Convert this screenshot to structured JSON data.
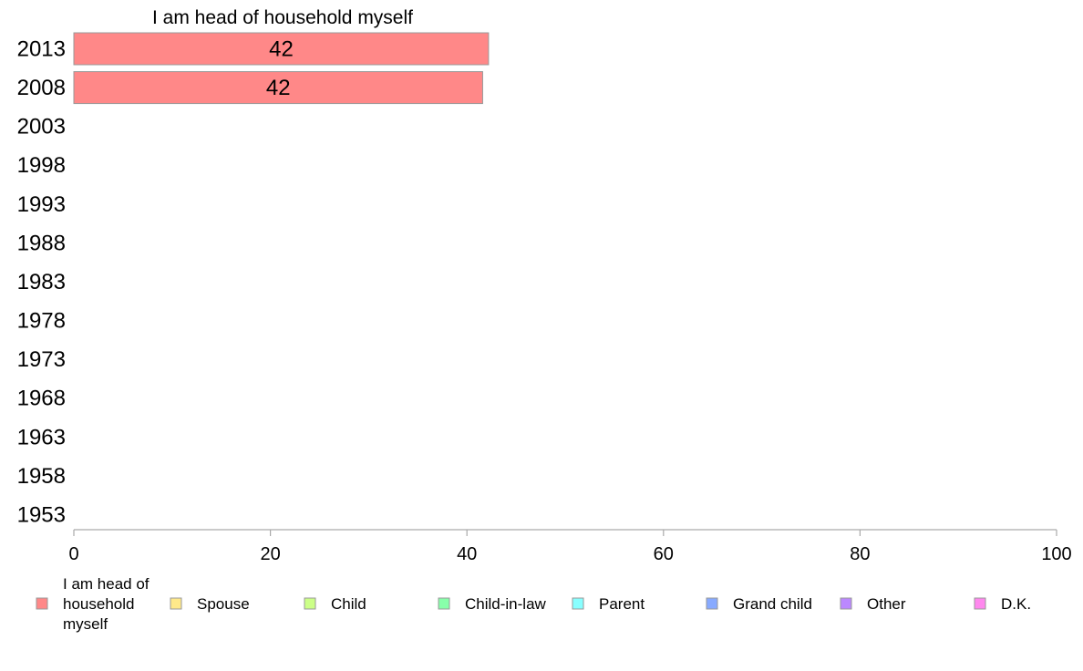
{
  "chart_data": {
    "type": "bar",
    "orientation": "horizontal",
    "title": "I am head of household myself",
    "categories": [
      "2013",
      "2008",
      "2003",
      "1998",
      "1993",
      "1988",
      "1983",
      "1978",
      "1973",
      "1968",
      "1963",
      "1958",
      "1953"
    ],
    "series": [
      {
        "name": "I am head of household myself",
        "color": "#ff8888",
        "values": [
          42.2,
          41.6,
          null,
          null,
          null,
          null,
          null,
          null,
          null,
          null,
          null,
          null,
          null
        ],
        "labels": [
          "42",
          "42",
          "",
          "",
          "",
          "",
          "",
          "",
          "",
          "",
          "",
          "",
          ""
        ]
      }
    ],
    "xlim": [
      0,
      100
    ],
    "xticks": [
      "0",
      "20",
      "40",
      "60",
      "80",
      "100"
    ],
    "grid": false,
    "legend_position": "bottom",
    "legend": [
      {
        "lines": [
          "I am head of",
          "household",
          "myself"
        ],
        "color": "#ff8888"
      },
      {
        "lines": [
          "Spouse"
        ],
        "color": "#ffe98a"
      },
      {
        "lines": [
          "Child"
        ],
        "color": "#ccff88"
      },
      {
        "lines": [
          "Child-in-law"
        ],
        "color": "#88ffaa"
      },
      {
        "lines": [
          "Parent"
        ],
        "color": "#88ffff"
      },
      {
        "lines": [
          "Grand child"
        ],
        "color": "#88aaff"
      },
      {
        "lines": [
          "Other"
        ],
        "color": "#bb88ff"
      },
      {
        "lines": [
          "D.K."
        ],
        "color": "#ff88ee"
      }
    ]
  }
}
